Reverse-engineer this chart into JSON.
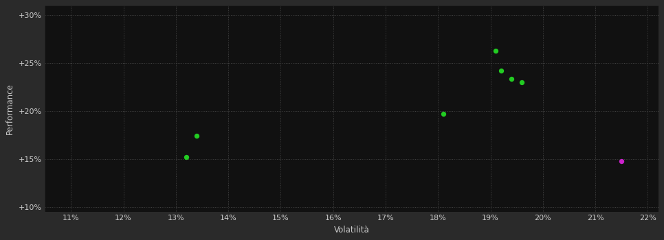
{
  "background_color": "#2a2a2a",
  "plot_bg_color": "#111111",
  "grid_color": "#444444",
  "grid_linestyle": ":",
  "xlim": [
    0.105,
    0.222
  ],
  "ylim": [
    0.095,
    0.31
  ],
  "xticks": [
    0.11,
    0.12,
    0.13,
    0.14,
    0.15,
    0.16,
    0.17,
    0.18,
    0.19,
    0.2,
    0.21,
    0.22
  ],
  "yticks": [
    0.1,
    0.15,
    0.2,
    0.25,
    0.3
  ],
  "xlabel": "Volatilità",
  "ylabel": "Performance",
  "xlabel_color": "#cccccc",
  "ylabel_color": "#cccccc",
  "tick_color": "#cccccc",
  "tick_fontsize": 8,
  "label_fontsize": 8.5,
  "green_points": [
    [
      0.134,
      0.174
    ],
    [
      0.132,
      0.152
    ],
    [
      0.181,
      0.197
    ],
    [
      0.191,
      0.263
    ],
    [
      0.192,
      0.242
    ],
    [
      0.194,
      0.234
    ],
    [
      0.196,
      0.23
    ]
  ],
  "magenta_points": [
    [
      0.215,
      0.148
    ]
  ],
  "green_color": "#22cc22",
  "magenta_color": "#cc22cc",
  "marker_size": 28
}
